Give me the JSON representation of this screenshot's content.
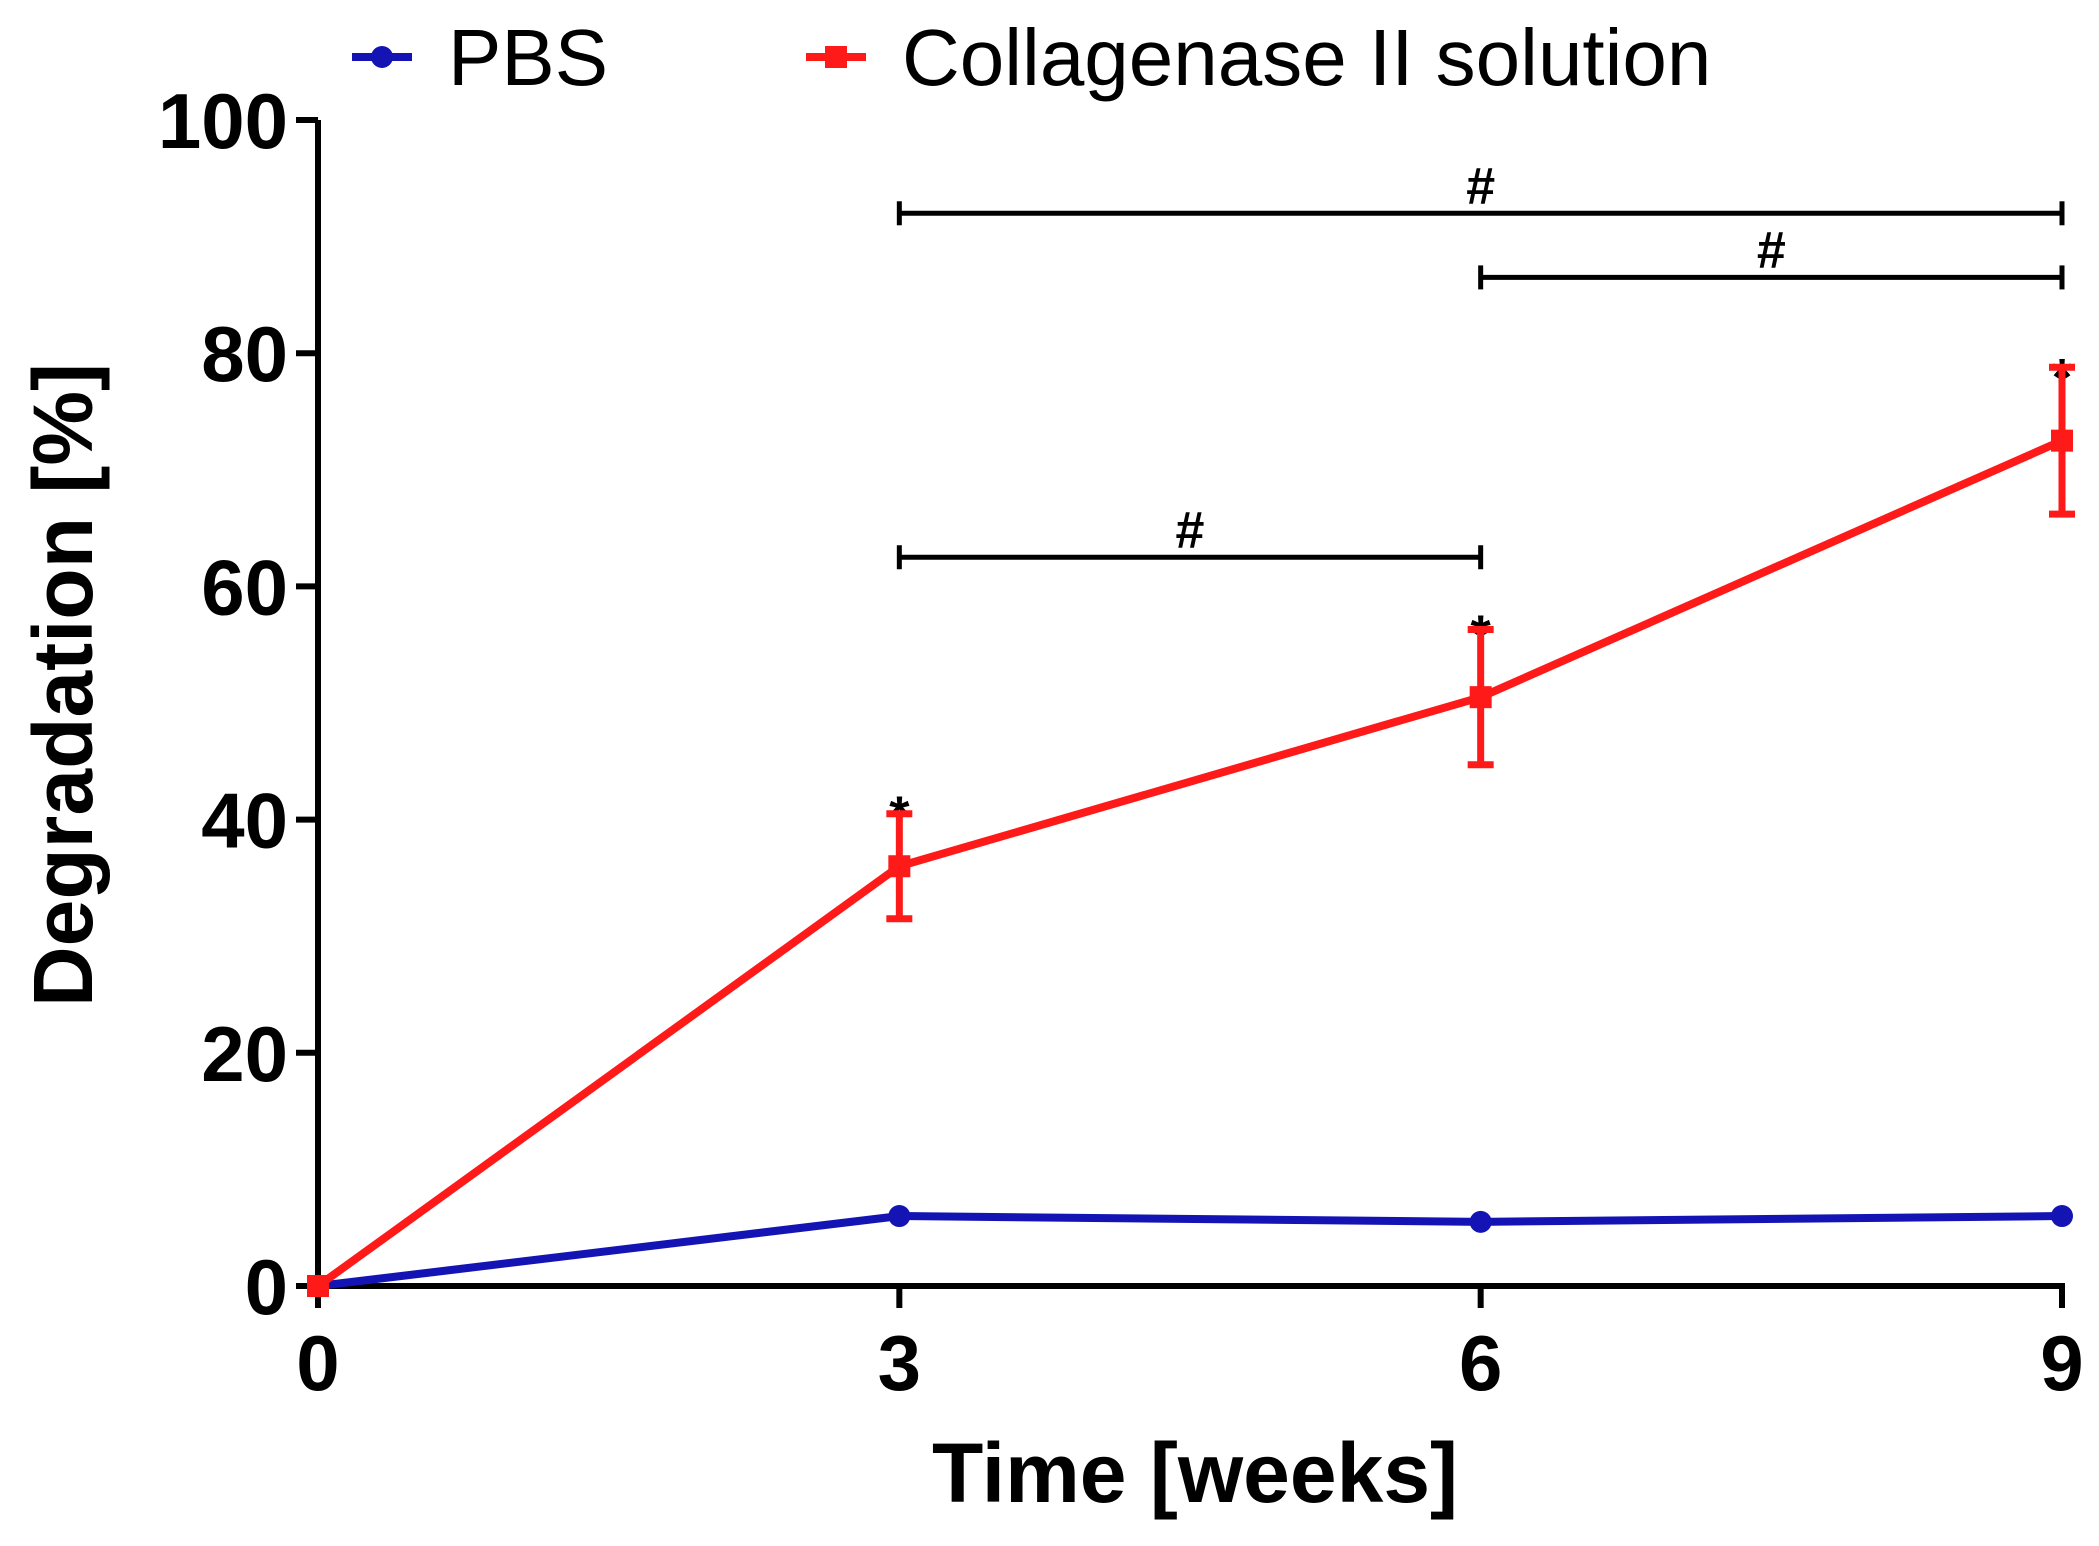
{
  "chart_data": {
    "type": "line",
    "title": "",
    "xlabel": "Time [weeks]",
    "ylabel": "Degradation [%]",
    "xlim": [
      0,
      9
    ],
    "ylim": [
      0,
      100
    ],
    "xticks": [
      0,
      3,
      6,
      9
    ],
    "yticks": [
      0,
      20,
      40,
      60,
      80,
      100
    ],
    "grid": false,
    "legend_position": "top",
    "series": [
      {
        "name": "PBS",
        "color": "#1414b4",
        "marker": "circle",
        "x": [
          0,
          3,
          6,
          9
        ],
        "y": [
          0,
          6,
          5.5,
          6
        ],
        "error": [
          0,
          0,
          0,
          0
        ]
      },
      {
        "name": "Collagenase II solution",
        "color": "#ff1a1a",
        "marker": "square",
        "x": [
          0,
          3,
          6,
          9
        ],
        "y": [
          0,
          36,
          50.5,
          72.5
        ],
        "error": [
          0,
          4.5,
          5.8,
          6.3
        ]
      }
    ],
    "significance_markers": [
      {
        "symbol": "*",
        "x": 3,
        "y": 42
      },
      {
        "symbol": "*",
        "x": 6,
        "y": 57.5
      },
      {
        "symbol": "*",
        "x": 9,
        "y": 79.5
      }
    ],
    "comparison_brackets": [
      {
        "symbol": "#",
        "x_start": 3,
        "x_end": 6,
        "y": 62.5
      },
      {
        "symbol": "#",
        "x_start": 6,
        "x_end": 9,
        "y": 86.5
      },
      {
        "symbol": "#",
        "x_start": 3,
        "x_end": 9,
        "y": 92
      }
    ]
  }
}
